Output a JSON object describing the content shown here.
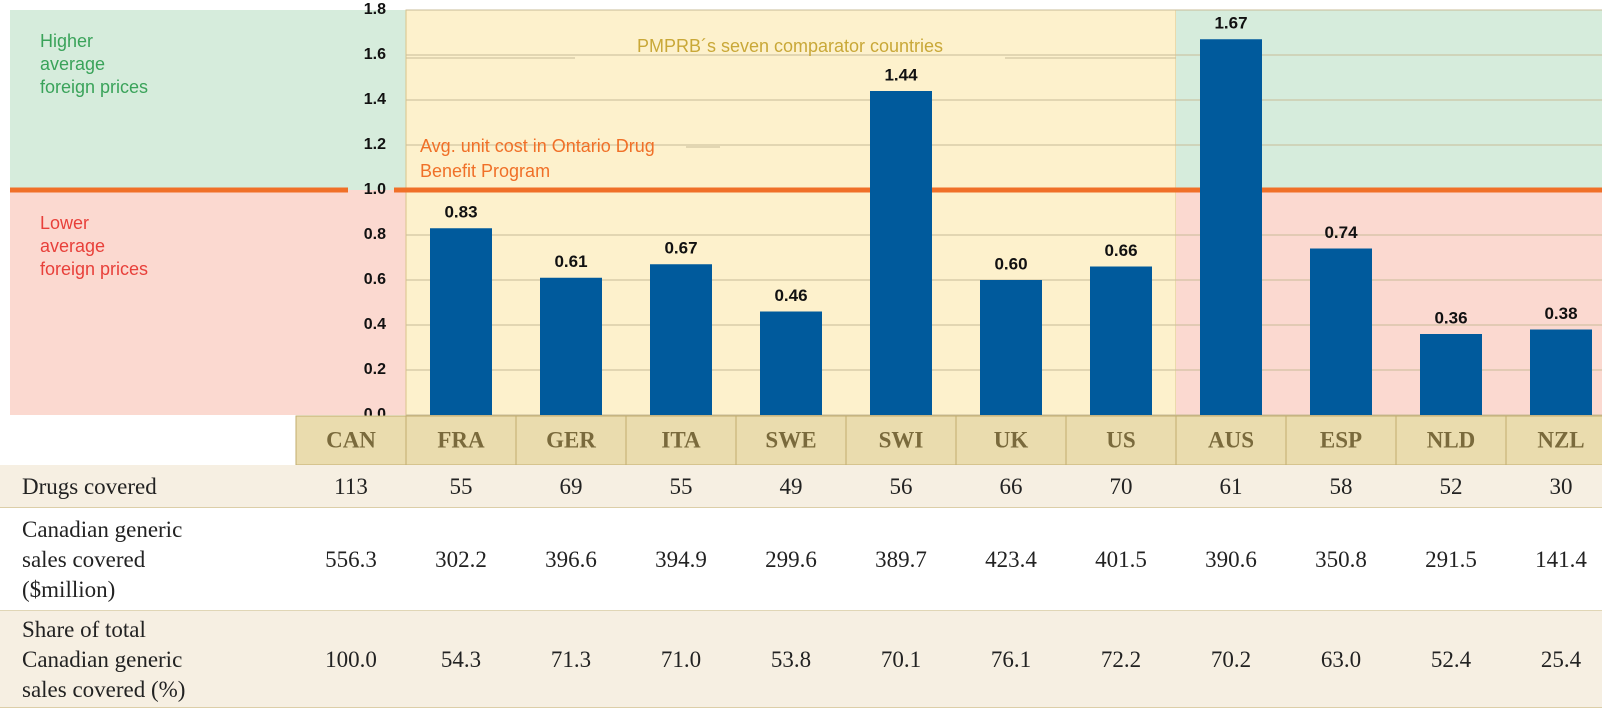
{
  "chart_data": {
    "type": "bar",
    "categories": [
      "CAN",
      "FRA",
      "GER",
      "ITA",
      "SWE",
      "SWI",
      "UK",
      "US",
      "AUS",
      "ESP",
      "NLD",
      "NZL"
    ],
    "values": [
      null,
      0.83,
      0.61,
      0.67,
      0.46,
      1.44,
      0.6,
      0.66,
      1.67,
      0.74,
      0.36,
      0.38
    ],
    "value_labels": [
      null,
      "0.83",
      "0.61",
      "0.67",
      "0.46",
      "1.44",
      "0.60",
      "0.66",
      "1.67",
      "0.74",
      "0.36",
      "0.38"
    ],
    "color": "#005a9c",
    "ylim": [
      0,
      1.8
    ],
    "yticks": [
      {
        "value": 0,
        "label": "0.0"
      },
      0.2,
      0.4,
      0.6,
      0.8,
      {
        "value": 1,
        "label": "1.0"
      },
      1.2,
      1.4,
      1.6,
      1.8
    ],
    "grid": true,
    "reference_line": {
      "value": 1,
      "label": "1.0",
      "color": "#f07028",
      "text": "Avg. unit cost in Ontario Drug Benefit Program"
    },
    "higher_label": "Higher average foreign prices",
    "lower_label": "Lower average foreign prices",
    "comparator_label": "PMPRB´s seven comparator countries"
  },
  "table": {
    "rows": [
      {
        "label": "Drugs covered",
        "values": [
          "113",
          "55",
          "69",
          "55",
          "49",
          "56",
          "66",
          "70",
          "61",
          "58",
          "52",
          "30"
        ]
      },
      {
        "label": "Canadian generic sales covered ($million)",
        "values": [
          "556.3",
          "302.2",
          "396.6",
          "394.9",
          "299.6",
          "389.7",
          "423.4",
          "401.5",
          "390.6",
          "350.8",
          "291.5",
          "141.4"
        ]
      },
      {
        "label": "Share of total Canadian generic sales covered (%)",
        "values": [
          "100.0",
          "54.3",
          "71.3",
          "71.0",
          "53.8",
          "70.1",
          "76.1",
          "72.2",
          "70.2",
          "63.0",
          "52.4",
          "25.4"
        ]
      }
    ]
  }
}
